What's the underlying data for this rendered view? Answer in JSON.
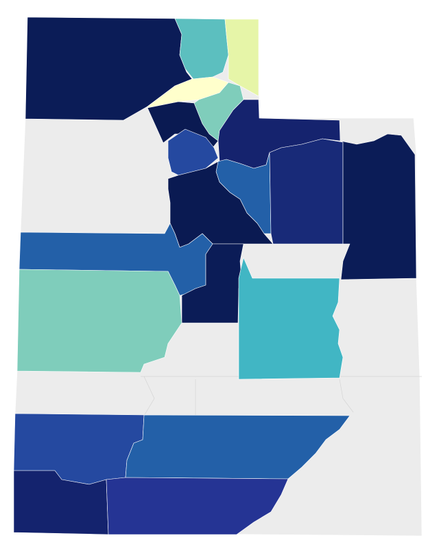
{
  "map": {
    "background_color": "#ececec",
    "regions": [
      {
        "color": "#0b1c57"
      },
      {
        "color": "#5cbfbf"
      },
      {
        "color": "#e6f5a8"
      },
      {
        "color": "#ffffcc"
      },
      {
        "color": "#7fcdbb"
      },
      {
        "color": "#15236e"
      },
      {
        "color": "#0a1a52"
      },
      {
        "color": "#2549a0"
      },
      {
        "color": "#2360a8"
      },
      {
        "color": "#182a78"
      },
      {
        "color": "#0b1c57"
      },
      {
        "color": "#0a1a52"
      },
      {
        "color": "#2360a8"
      },
      {
        "color": "#0b1c57"
      },
      {
        "color": "#41b6c4"
      },
      {
        "color": "#7fcdbb"
      },
      {
        "color": "#2549a0"
      },
      {
        "color": "#2360a8"
      },
      {
        "color": "#14236e"
      },
      {
        "color": "#253494"
      }
    ]
  }
}
